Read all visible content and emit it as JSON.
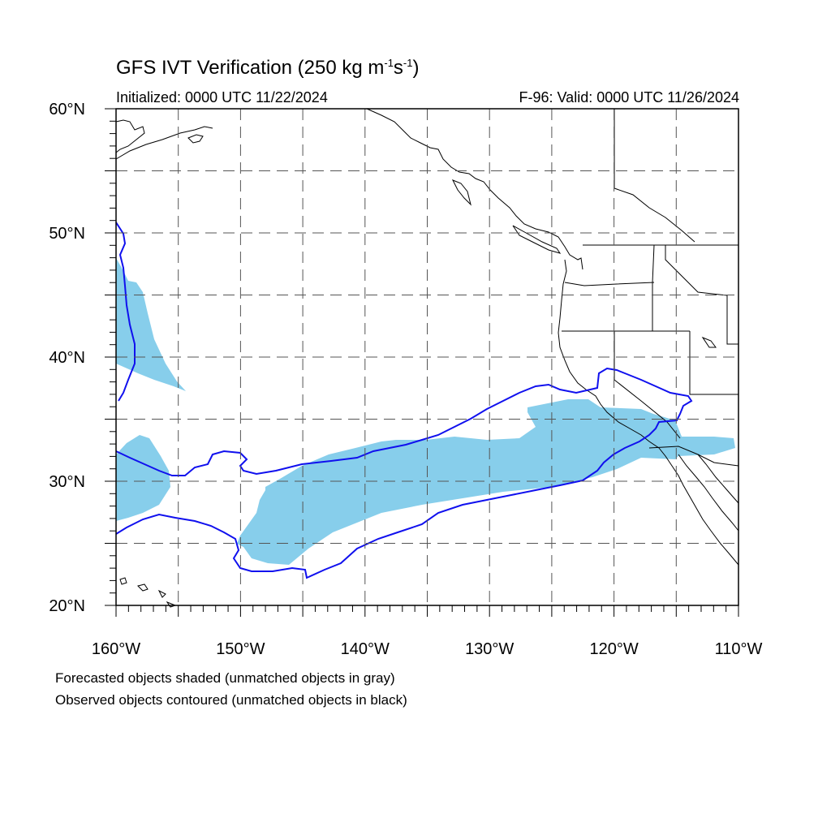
{
  "title": {
    "main": "GFS IVT Verification (250 kg m",
    "exp1": "-1",
    "mid": "s",
    "exp2": "-1",
    "end": ")"
  },
  "subtitle_left": "Initialized: 0000 UTC 11/22/2024",
  "subtitle_right": "F-96: Valid: 0000 UTC 11/26/2024",
  "map": {
    "lon_range": [
      -160,
      -110
    ],
    "lat_range": [
      20,
      60
    ],
    "grid": "dashed",
    "lon_labels": [
      "160°W",
      "150°W",
      "140°W",
      "130°W",
      "120°W",
      "110°W"
    ],
    "lat_labels": [
      "20°N",
      "30°N",
      "40°N",
      "50°N",
      "60°N"
    ],
    "forecast_color": "#87ceeb",
    "observed_color": "#1010ee",
    "coast_color": "#000000"
  },
  "footnotes": {
    "line1": "Forecasted objects shaded (unmatched objects in gray)",
    "line2": "Observed objects contoured (unmatched objects in black)"
  }
}
